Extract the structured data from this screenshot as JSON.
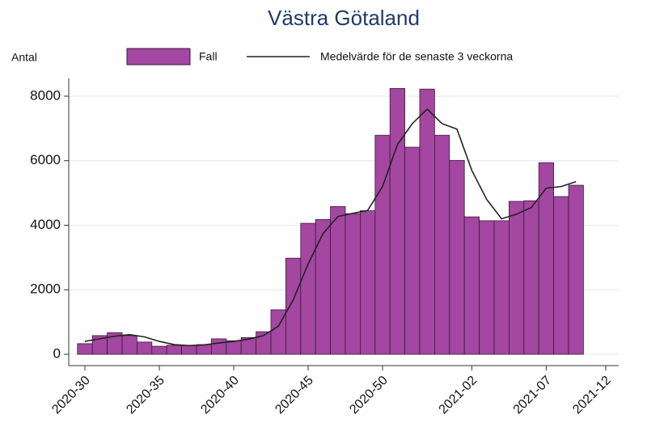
{
  "chart_data": {
    "type": "bar",
    "title": "Västra Götaland",
    "y_label": "Antal",
    "categories": [
      "2020-30",
      null,
      null,
      null,
      null,
      "2020-35",
      null,
      null,
      null,
      null,
      "2020-40",
      null,
      null,
      null,
      null,
      "2020-45",
      null,
      null,
      null,
      null,
      "2020-50",
      null,
      null,
      null,
      null,
      null,
      "2021-02",
      null,
      null,
      null,
      null,
      "2021-07",
      null,
      null,
      null,
      "2021-12"
    ],
    "series": [
      {
        "name": "Fall",
        "type": "bar",
        "color": "#a347a0",
        "values": [
          330,
          580,
          670,
          580,
          380,
          250,
          280,
          280,
          300,
          480,
          420,
          520,
          700,
          1380,
          2980,
          4060,
          4180,
          4580,
          4360,
          4450,
          6790,
          8240,
          6420,
          8220,
          6790,
          6010,
          4260,
          4140,
          4140,
          4740,
          4760,
          5940,
          4890,
          5240,
          null,
          null
        ]
      },
      {
        "name": "Medelvärde för de senaste 3 veckorna",
        "type": "line",
        "color": "#222222",
        "values": [
          400,
          480,
          560,
          610,
          540,
          400,
          300,
          270,
          290,
          350,
          400,
          470,
          580,
          870,
          1690,
          2800,
          3740,
          4270,
          4370,
          4460,
          5200,
          6500,
          7150,
          7600,
          7150,
          6980,
          5700,
          4800,
          4200,
          4340,
          4550,
          5150,
          5200,
          5350,
          null,
          null
        ]
      }
    ],
    "ylim": [
      -350,
      8550
    ],
    "yticks": [
      0,
      2000,
      4000,
      6000,
      8000
    ],
    "grid": true
  }
}
